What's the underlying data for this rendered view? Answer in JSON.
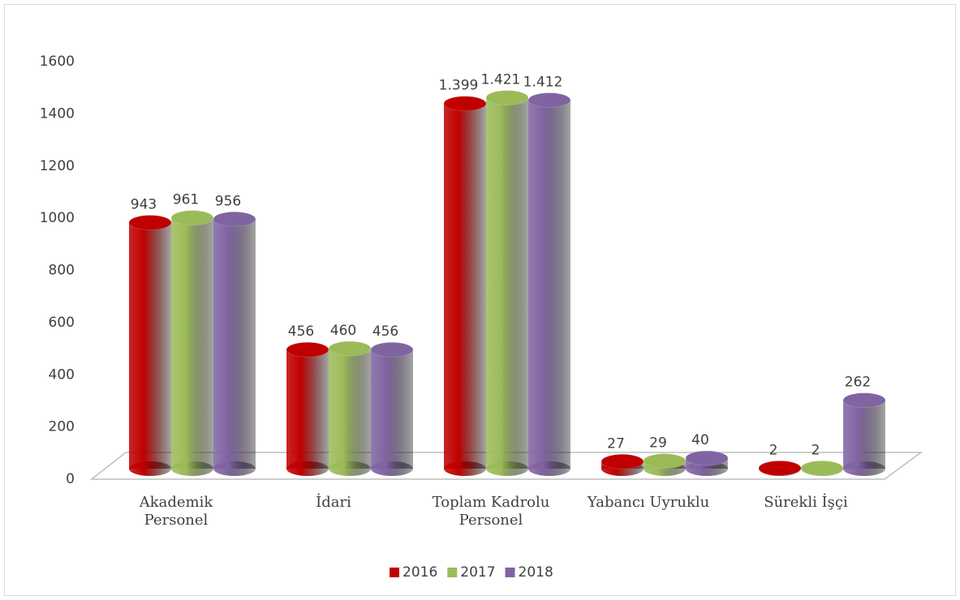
{
  "chart_data": {
    "type": "bar3d",
    "categories": [
      "Akademik Personel",
      "İdari",
      "Toplam Kadrolu Personel",
      "Yabancı Uyruklu",
      "Sürekli İşçi"
    ],
    "series": [
      {
        "name": "2016",
        "color": "#c00000",
        "values": [
          943,
          456,
          1399,
          27,
          2
        ],
        "value_labels": [
          "943",
          "456",
          "1.399",
          "27",
          "2"
        ]
      },
      {
        "name": "2017",
        "color": "#9bbb59",
        "values": [
          961,
          460,
          1421,
          29,
          2
        ],
        "value_labels": [
          "961",
          "460",
          "1.421",
          "29",
          "2"
        ]
      },
      {
        "name": "2018",
        "color": "#8064a2",
        "values": [
          956,
          456,
          1412,
          40,
          262
        ],
        "value_labels": [
          "956",
          "456",
          "1.412",
          "40",
          "262"
        ]
      }
    ],
    "ylim": [
      0,
      1600
    ],
    "yticks": [
      0,
      200,
      400,
      600,
      800,
      1000,
      1200,
      1400,
      1600
    ],
    "legend": "bottom"
  }
}
